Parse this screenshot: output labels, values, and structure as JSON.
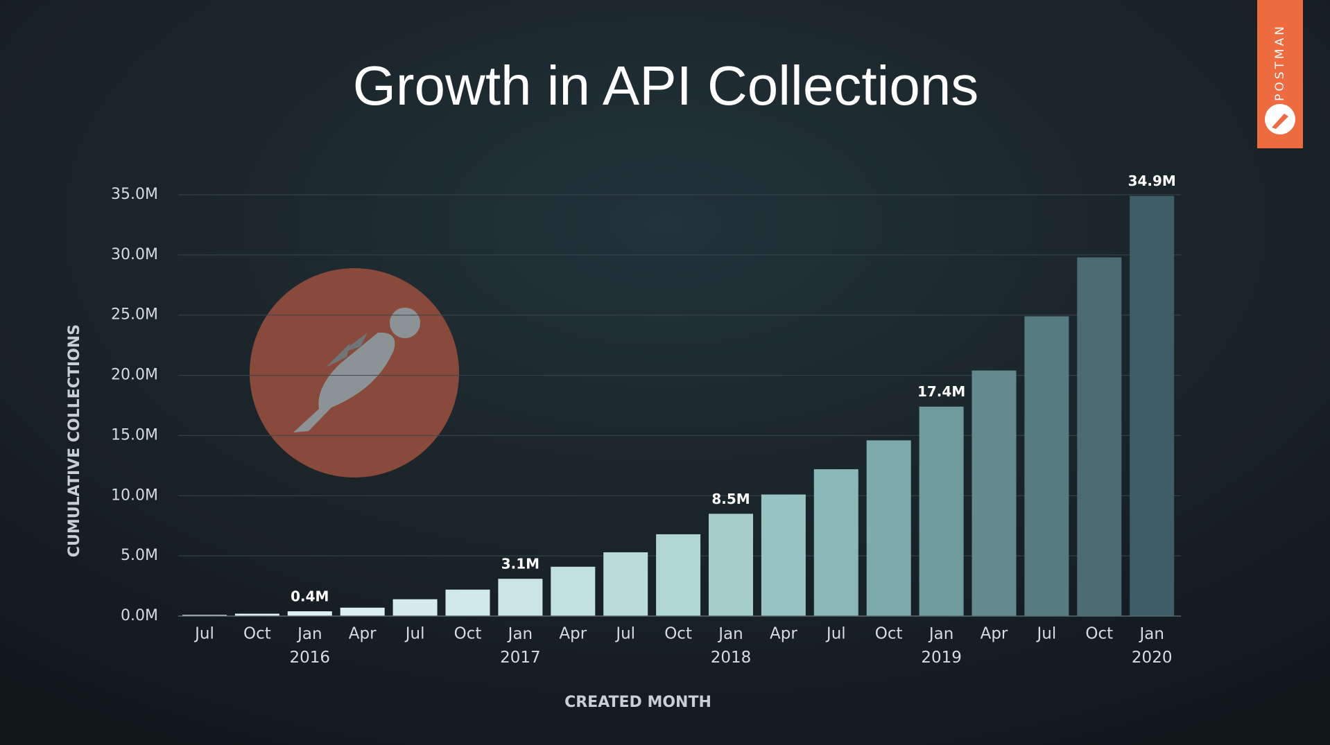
{
  "chart_data": {
    "type": "bar",
    "title": "Growth in API Collections",
    "brand": "POSTMAN",
    "y_label": "CUMULATIVE COLLECTIONS",
    "x_label": "CREATED MONTH",
    "categories": [
      "Jul",
      "Oct",
      "Jan 2016",
      "Apr",
      "Jul",
      "Oct",
      "Jan 2017",
      "Apr",
      "Jul",
      "Oct",
      "Jan 2018",
      "Apr",
      "Jul",
      "Oct",
      "Jan 2019",
      "Apr",
      "Jul",
      "Oct",
      "Jan 2020"
    ],
    "values": [
      0.1,
      0.2,
      0.4,
      0.7,
      1.4,
      2.2,
      3.1,
      4.1,
      5.3,
      6.8,
      8.5,
      10.1,
      12.2,
      14.6,
      17.4,
      20.4,
      24.9,
      29.8,
      34.9
    ],
    "value_labels": [
      null,
      null,
      "0.4M",
      null,
      null,
      null,
      "3.1M",
      null,
      null,
      null,
      "8.5M",
      null,
      null,
      null,
      "17.4M",
      null,
      null,
      null,
      "34.9M"
    ],
    "colors": [
      "#e4f3f2",
      "#e2f2f1",
      "#dff1f0",
      "#dbefee",
      "#d6eceb",
      "#d1e9e8",
      "#cae5e4",
      "#c2e0df",
      "#b9dbda",
      "#afd5d4",
      "#a4cdcc",
      "#97c3c2",
      "#89b8b7",
      "#7daaaa",
      "#709b9c",
      "#638b8e",
      "#567b80",
      "#4a6b72",
      "#3f5d66"
    ],
    "ylim": [
      0,
      35
    ],
    "yticks": [
      {
        "value": 0,
        "label": "0.0M"
      },
      {
        "value": 5,
        "label": "5.0M"
      },
      {
        "value": 10,
        "label": "10.0M"
      },
      {
        "value": 15,
        "label": "15.0M"
      },
      {
        "value": 20,
        "label": "20.0M"
      },
      {
        "value": 25,
        "label": "25.0M"
      },
      {
        "value": 30,
        "label": "30.0M"
      },
      {
        "value": 35,
        "label": "35.0M"
      }
    ],
    "grid": true
  }
}
